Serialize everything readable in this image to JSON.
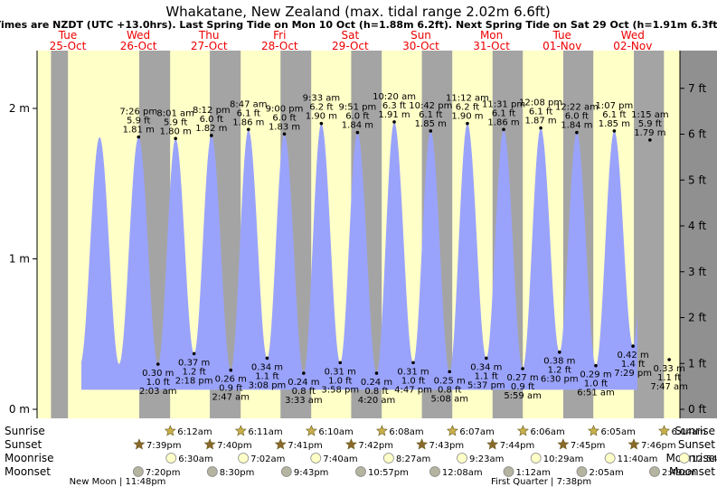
{
  "title": "Whakatane, New Zealand (max. tidal range 2.02m 6.6ft)",
  "subtitle": "Times are NZDT (UTC +13.0hrs). Last Spring Tide on Mon 10 Oct (h=1.88m 6.2ft). Next Spring Tide on Sat 29 Oct (h=1.91m 6.3ft)",
  "colors": {
    "day": "#ffffc8",
    "night": "#a4a4a4",
    "water": "#9aa3fb",
    "header_red": "#ee0000",
    "outer_gray": "#909090"
  },
  "chart_data": {
    "type": "area",
    "title": "Whakatane, New Zealand (max. tidal range 2.02m 6.6ft)",
    "x_range_days": [
      -0.43,
      8.88
    ],
    "ylim_m": [
      -0.05,
      2.36
    ],
    "days": [
      {
        "dow": "Tue",
        "date": "25-Oct"
      },
      {
        "dow": "Wed",
        "date": "26-Oct"
      },
      {
        "dow": "Thu",
        "date": "27-Oct"
      },
      {
        "dow": "Fri",
        "date": "28-Oct"
      },
      {
        "dow": "Sat",
        "date": "29-Oct"
      },
      {
        "dow": "Sun",
        "date": "30-Oct"
      },
      {
        "dow": "Mon",
        "date": "31-Oct"
      },
      {
        "dow": "Tue",
        "date": "01-Nov"
      },
      {
        "dow": "Wed",
        "date": "02-Nov"
      }
    ],
    "left_axis": {
      "unit": "m",
      "ticks": [
        {
          "v": 0,
          "label": "0 m"
        },
        {
          "v": 1,
          "label": "1 m"
        },
        {
          "v": 2,
          "label": "2 m"
        }
      ]
    },
    "right_axis": {
      "unit": "ft",
      "ticks": [
        {
          "v": 0,
          "label": "0 ft"
        },
        {
          "v": 1,
          "label": "1 ft"
        },
        {
          "v": 2,
          "label": "2 ft"
        },
        {
          "v": 3,
          "label": "3 ft"
        },
        {
          "v": 4,
          "label": "4 ft"
        },
        {
          "v": 5,
          "label": "5 ft"
        },
        {
          "v": 6,
          "label": "6 ft"
        },
        {
          "v": 7,
          "label": "7 ft"
        }
      ]
    },
    "tides": [
      {
        "day": 0,
        "time": "7:26 pm",
        "m": 1.81,
        "ft": "5.9 ft",
        "m_label": "1.81 m",
        "type": "high"
      },
      {
        "day": 1,
        "time": "2:03 am",
        "m": 0.3,
        "ft": "1.0 ft",
        "m_label": "0.30 m",
        "type": "low"
      },
      {
        "day": 1,
        "time": "8:01 am",
        "m": 1.8,
        "ft": "5.9 ft",
        "m_label": "1.80 m",
        "type": "high"
      },
      {
        "day": 1,
        "time": "2:18 pm",
        "m": 0.37,
        "ft": "1.2 ft",
        "m_label": "0.37 m",
        "type": "low"
      },
      {
        "day": 1,
        "time": "8:12 pm",
        "m": 1.82,
        "ft": "6.0 ft",
        "m_label": "1.82 m",
        "type": "high"
      },
      {
        "day": 2,
        "time": "2:47 am",
        "m": 0.26,
        "ft": "0.9 ft",
        "m_label": "0.26 m",
        "type": "low"
      },
      {
        "day": 2,
        "time": "8:47 am",
        "m": 1.86,
        "ft": "6.1 ft",
        "m_label": "1.86 m",
        "type": "high"
      },
      {
        "day": 2,
        "time": "3:08 pm",
        "m": 0.34,
        "ft": "1.1 ft",
        "m_label": "0.34 m",
        "type": "low"
      },
      {
        "day": 2,
        "time": "9:00 pm",
        "m": 1.83,
        "ft": "6.0 ft",
        "m_label": "1.83 m",
        "type": "high"
      },
      {
        "day": 3,
        "time": "3:33 am",
        "m": 0.24,
        "ft": "0.8 ft",
        "m_label": "0.24 m",
        "type": "low"
      },
      {
        "day": 3,
        "time": "9:33 am",
        "m": 1.9,
        "ft": "6.2 ft",
        "m_label": "1.90 m",
        "type": "high"
      },
      {
        "day": 3,
        "time": "3:58 pm",
        "m": 0.31,
        "ft": "1.0 ft",
        "m_label": "0.31 m",
        "type": "low"
      },
      {
        "day": 3,
        "time": "9:51 pm",
        "m": 1.84,
        "ft": "6.0 ft",
        "m_label": "1.84 m",
        "type": "high"
      },
      {
        "day": 4,
        "time": "4:20 am",
        "m": 0.24,
        "ft": "0.8 ft",
        "m_label": "0.24 m",
        "type": "low"
      },
      {
        "day": 4,
        "time": "10:20 am",
        "m": 1.91,
        "ft": "6.3 ft",
        "m_label": "1.91 m",
        "type": "high"
      },
      {
        "day": 4,
        "time": "4:47 pm",
        "m": 0.31,
        "ft": "1.0 ft",
        "m_label": "0.31 m",
        "type": "low"
      },
      {
        "day": 4,
        "time": "10:42 pm",
        "m": 1.85,
        "ft": "6.1 ft",
        "m_label": "1.85 m",
        "type": "high"
      },
      {
        "day": 5,
        "time": "5:08 am",
        "m": 0.25,
        "ft": "0.8 ft",
        "m_label": "0.25 m",
        "type": "low"
      },
      {
        "day": 5,
        "time": "11:12 am",
        "m": 1.9,
        "ft": "6.2 ft",
        "m_label": "1.90 m",
        "type": "high"
      },
      {
        "day": 5,
        "time": "5:37 pm",
        "m": 0.34,
        "ft": "1.1 ft",
        "m_label": "0.34 m",
        "type": "low"
      },
      {
        "day": 5,
        "time": "11:31 pm",
        "m": 1.86,
        "ft": "6.1 ft",
        "m_label": "1.86 m",
        "type": "high"
      },
      {
        "day": 6,
        "time": "5:59 am",
        "m": 0.27,
        "ft": "0.9 ft",
        "m_label": "0.27 m",
        "type": "low"
      },
      {
        "day": 6,
        "time": "12:08 pm",
        "m": 1.87,
        "ft": "6.1 ft",
        "m_label": "1.87 m",
        "type": "high"
      },
      {
        "day": 6,
        "time": "6:30 pm",
        "m": 0.38,
        "ft": "1.2 ft",
        "m_label": "0.38 m",
        "type": "low"
      },
      {
        "day": 7,
        "time": "12:22 am",
        "m": 1.84,
        "ft": "6.0 ft",
        "m_label": "1.84 m",
        "type": "high"
      },
      {
        "day": 7,
        "time": "6:51 am",
        "m": 0.29,
        "ft": "1.0 ft",
        "m_label": "0.29 m",
        "type": "low"
      },
      {
        "day": 7,
        "time": "1:07 pm",
        "m": 1.85,
        "ft": "6.1 ft",
        "m_label": "1.85 m",
        "type": "high"
      },
      {
        "day": 7,
        "time": "7:29 pm",
        "m": 0.42,
        "ft": "1.4 ft",
        "m_label": "0.42 m",
        "type": "low"
      },
      {
        "day": 8,
        "time": "1:15 am",
        "m": 1.79,
        "ft": "5.9 ft",
        "m_label": "1.79 m",
        "type": "high"
      },
      {
        "day": 8,
        "time": "7:47 am",
        "m": 0.33,
        "ft": "1.1 ft",
        "m_label": "0.33 m",
        "type": "low"
      }
    ],
    "night_bands": [
      {
        "from_day": -0.43,
        "to_day": -0.19
      },
      {
        "from_day": 0.819,
        "to_day": 1.257
      },
      {
        "from_day": 1.819,
        "to_day": 2.256
      },
      {
        "from_day": 2.82,
        "to_day": 3.255
      },
      {
        "from_day": 3.821,
        "to_day": 4.253
      },
      {
        "from_day": 4.822,
        "to_day": 5.252
      },
      {
        "from_day": 5.823,
        "to_day": 6.251
      },
      {
        "from_day": 6.824,
        "to_day": 7.25
      },
      {
        "from_day": 7.824,
        "to_day": 8.25
      },
      {
        "from_day": 8.825,
        "to_day": 8.88
      }
    ],
    "astro_labels": [
      "Sunrise",
      "Sunset",
      "Moonrise",
      "Moonset"
    ],
    "sunrise": [
      {
        "day": 1,
        "time": "6:12am"
      },
      {
        "day": 2,
        "time": "6:11am"
      },
      {
        "day": 3,
        "time": "6:10am"
      },
      {
        "day": 4,
        "time": "6:08am"
      },
      {
        "day": 5,
        "time": "6:07am"
      },
      {
        "day": 6,
        "time": "6:06am"
      },
      {
        "day": 7,
        "time": "6:05am"
      },
      {
        "day": 8,
        "time": "6:04am"
      }
    ],
    "sunset": [
      {
        "day": 0,
        "time": "7:39pm"
      },
      {
        "day": 1,
        "time": "7:40pm"
      },
      {
        "day": 2,
        "time": "7:41pm"
      },
      {
        "day": 3,
        "time": "7:42pm"
      },
      {
        "day": 4,
        "time": "7:43pm"
      },
      {
        "day": 5,
        "time": "7:44pm"
      },
      {
        "day": 6,
        "time": "7:45pm"
      },
      {
        "day": 7,
        "time": "7:46pm"
      }
    ],
    "moonrise": [
      {
        "day": 1,
        "time": "6:30am"
      },
      {
        "day": 2,
        "time": "7:02am"
      },
      {
        "day": 3,
        "time": "7:40am"
      },
      {
        "day": 4,
        "time": "8:27am"
      },
      {
        "day": 5,
        "time": "9:23am"
      },
      {
        "day": 6,
        "time": "10:29am"
      },
      {
        "day": 7,
        "time": "11:40am"
      },
      {
        "day": 8,
        "time": "12:54pm"
      }
    ],
    "moonset": [
      {
        "day": 0,
        "time": "7:20pm"
      },
      {
        "day": 1,
        "time": "8:30pm"
      },
      {
        "day": 2,
        "time": "9:43pm"
      },
      {
        "day": 3,
        "time": "10:57pm"
      },
      {
        "day": 5,
        "time": "12:08am"
      },
      {
        "day": 6,
        "time": "1:12am"
      },
      {
        "day": 7,
        "time": "2:05am"
      },
      {
        "day": 8,
        "time": "2:49am"
      }
    ],
    "moon_phases": [
      {
        "day": 0,
        "label": "New Moon | 11:48pm"
      },
      {
        "day": 6,
        "label": "First Quarter | 7:38pm"
      }
    ]
  }
}
